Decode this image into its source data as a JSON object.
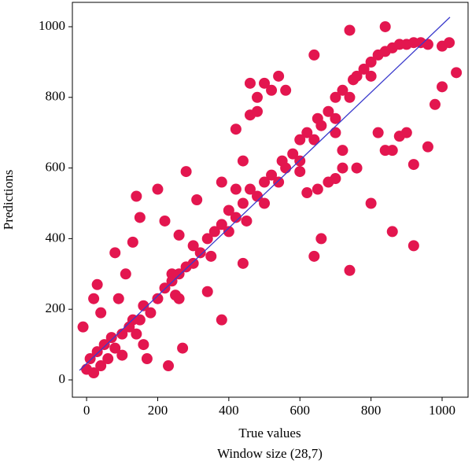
{
  "chart_data": {
    "type": "scatter",
    "xlabel": "True values",
    "caption": "Window size (28,7)",
    "ylabel": "Predictions",
    "xlim": [
      -40,
      1073
    ],
    "ylim": [
      -49,
      1069
    ],
    "xticks": [
      0,
      200,
      400,
      600,
      800,
      1000
    ],
    "yticks": [
      0,
      200,
      400,
      600,
      800,
      1000
    ],
    "series": [
      {
        "color": "#e3164f",
        "marker_radius": 7,
        "x": [
          0,
          10,
          20,
          30,
          40,
          50,
          60,
          70,
          80,
          100,
          100,
          120,
          140,
          150,
          160,
          180,
          200,
          220,
          240,
          250,
          260,
          280,
          300,
          300,
          320,
          340,
          350,
          360,
          380,
          400,
          400,
          420,
          440,
          450,
          460,
          480,
          500,
          500,
          520,
          540,
          550,
          560,
          580,
          600,
          600,
          620,
          640,
          650,
          660,
          680,
          700,
          700,
          720,
          740,
          750,
          760,
          780,
          800,
          800,
          820,
          840,
          860,
          880,
          900,
          920,
          940,
          960,
          1000,
          1020,
          380,
          420,
          440,
          460,
          480,
          500,
          520,
          560,
          650,
          680,
          720,
          820,
          840,
          -10,
          20,
          40,
          30,
          80,
          90,
          110,
          130,
          130,
          140,
          150,
          160,
          170,
          200,
          220,
          230,
          240,
          260,
          260,
          270,
          280,
          310,
          340,
          380,
          420,
          440,
          480,
          460,
          540,
          600,
          620,
          640,
          660,
          700,
          720,
          740,
          760,
          800,
          860,
          880,
          860,
          900,
          920,
          920,
          960,
          980,
          1000,
          1040,
          740,
          840,
          640,
          700
        ],
        "y": [
          30,
          60,
          20,
          80,
          40,
          100,
          60,
          120,
          90,
          130,
          70,
          150,
          130,
          170,
          210,
          190,
          230,
          260,
          280,
          240,
          300,
          320,
          330,
          380,
          360,
          400,
          350,
          420,
          440,
          420,
          480,
          460,
          500,
          450,
          540,
          520,
          560,
          500,
          580,
          560,
          620,
          600,
          640,
          620,
          680,
          700,
          680,
          740,
          720,
          760,
          800,
          740,
          820,
          800,
          850,
          860,
          880,
          900,
          860,
          920,
          930,
          940,
          950,
          950,
          955,
          955,
          950,
          945,
          955,
          560,
          540,
          620,
          750,
          800,
          840,
          820,
          820,
          540,
          560,
          600,
          700,
          650,
          150,
          230,
          190,
          270,
          360,
          230,
          300,
          170,
          390,
          520,
          460,
          100,
          60,
          540,
          450,
          40,
          300,
          230,
          410,
          90,
          590,
          510,
          250,
          170,
          710,
          330,
          760,
          840,
          860,
          590,
          530,
          350,
          400,
          570,
          650,
          310,
          600,
          500,
          650,
          690,
          420,
          700,
          610,
          380,
          660,
          780,
          830,
          870,
          990,
          1000,
          920,
          700
        ]
      },
      {
        "type": "line",
        "color": "#3a3acc",
        "x": [
          -20,
          1022
        ],
        "y": [
          27,
          1027
        ]
      }
    ]
  }
}
